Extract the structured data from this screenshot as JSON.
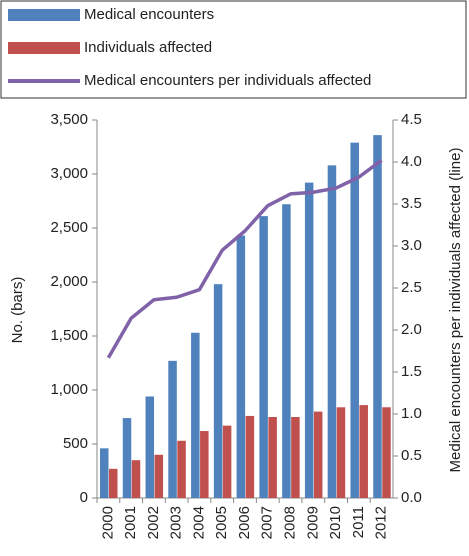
{
  "chart_data": {
    "type": "bar_line",
    "categories": [
      "2000",
      "2001",
      "2002",
      "2003",
      "2004",
      "2005",
      "2006",
      "2007",
      "2008",
      "2009",
      "2010",
      "2011",
      "2012"
    ],
    "series": [
      {
        "name": "Medical encounters",
        "color": "#4f81bd",
        "type": "bar",
        "values": [
          460,
          740,
          940,
          1270,
          1530,
          1980,
          2430,
          2610,
          2720,
          2920,
          3080,
          3290,
          3360
        ]
      },
      {
        "name": "Individuals affected",
        "color": "#c0504d",
        "type": "bar",
        "values": [
          270,
          350,
          400,
          530,
          620,
          670,
          760,
          750,
          750,
          800,
          840,
          860,
          840
        ]
      },
      {
        "name": "Medical encounters per individuals affected",
        "color": "#7f62a8",
        "type": "line",
        "axis": "y2",
        "values": [
          1.67,
          2.14,
          2.36,
          2.39,
          2.48,
          2.95,
          3.18,
          3.48,
          3.62,
          3.64,
          3.69,
          3.82,
          4.02
        ]
      }
    ],
    "ylabel": "No. (bars)",
    "y2label": "Medical encounters per individuals affected (line)",
    "ylim": [
      0,
      3500
    ],
    "yticks": [
      0,
      500,
      {
        "value": 1000,
        "label": "1,000"
      },
      {
        "value": 1500,
        "label": "1,500"
      },
      {
        "value": 2000,
        "label": "2,000"
      },
      {
        "value": 2500,
        "label": "2,500"
      },
      {
        "value": 3000,
        "label": "3,000"
      },
      {
        "value": 3500,
        "label": "3,500"
      }
    ],
    "y2lim": [
      0,
      4.5
    ],
    "y2ticks": [
      {
        "value": 0,
        "label": "0.0"
      },
      0.5,
      {
        "value": 1,
        "label": "1.0"
      },
      1.5,
      {
        "value": 2,
        "label": "2.0"
      },
      2.5,
      {
        "value": 3,
        "label": "3.0"
      },
      3.5,
      {
        "value": 4,
        "label": "4.0"
      },
      4.5
    ]
  }
}
